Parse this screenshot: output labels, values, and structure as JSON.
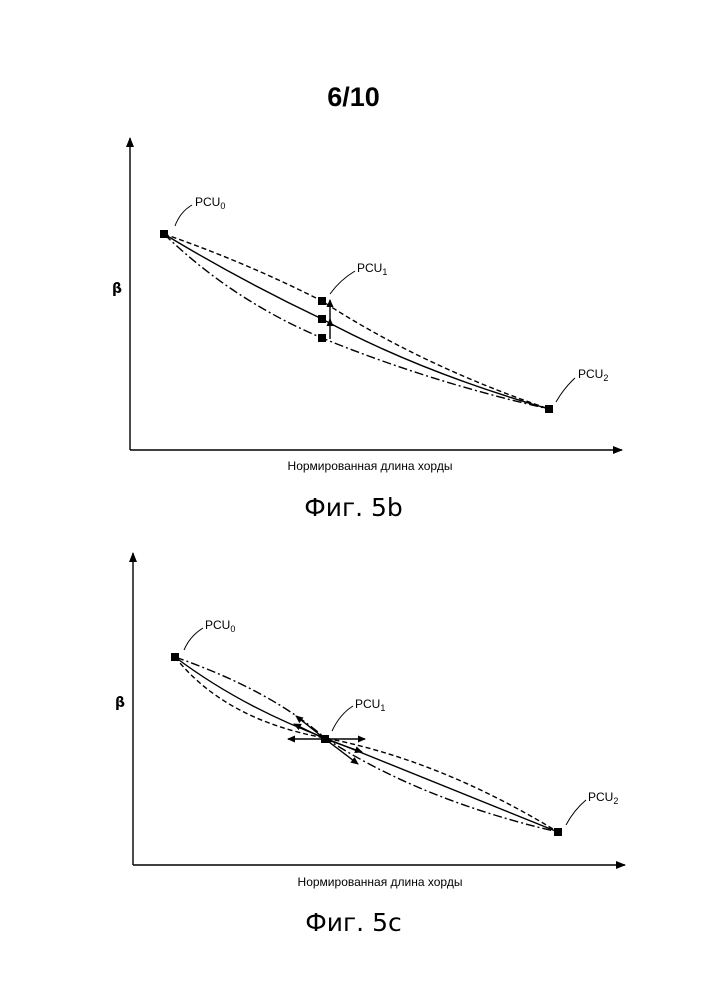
{
  "sheet": "6/10",
  "figures": [
    {
      "caption": "Фиг. 5b",
      "y_axis_label": "β",
      "x_axis_label": "Нормированная длина хорды",
      "points": [
        {
          "base": "PCU",
          "sub": "0"
        },
        {
          "base": "PCU",
          "sub": "1"
        },
        {
          "base": "PCU",
          "sub": "2"
        }
      ]
    },
    {
      "caption": "Фиг. 5c",
      "y_axis_label": "β",
      "x_axis_label": "Нормированная длина хорды",
      "points": [
        {
          "base": "PCU",
          "sub": "0"
        },
        {
          "base": "PCU",
          "sub": "1"
        },
        {
          "base": "PCU",
          "sub": "2"
        }
      ]
    }
  ],
  "line_styles": [
    "solid",
    "dashed",
    "dash-dot"
  ],
  "colors": {
    "ink": "#000000",
    "paper": "#ffffff"
  }
}
